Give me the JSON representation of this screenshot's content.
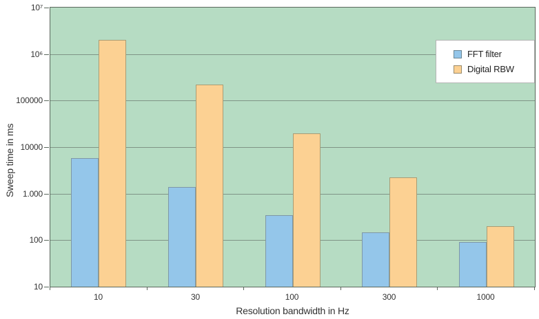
{
  "chart_data": {
    "type": "bar",
    "title": "",
    "xlabel": "Resolution bandwidth in Hz",
    "ylabel": "Sweep time in ms",
    "categories": [
      "10",
      "30",
      "100",
      "300",
      "1000"
    ],
    "series": [
      {
        "name": "FFT filter",
        "color": "#94c6ea",
        "border_color": "#7e97a6",
        "values": [
          5800,
          1400,
          350,
          145,
          90
        ]
      },
      {
        "name": "Digital RBW",
        "color": "#fcd193",
        "border_color": "#a99c74",
        "values": [
          2000000,
          220000,
          20000,
          2200,
          200
        ]
      }
    ],
    "y_axis": {
      "scale": "log",
      "min": 10,
      "max": 10000000,
      "tick_values": [
        10,
        100,
        1000,
        10000,
        100000,
        1000000,
        10000000
      ],
      "tick_labels": [
        "10",
        "100",
        "1.000",
        "10000",
        "100000",
        "10⁶",
        "10⁷"
      ]
    },
    "legend_position": "top-right",
    "grid": true,
    "colors": {
      "plot_background": "#b6dcc3",
      "gridline": "#7f9486",
      "plot_border": "#5a675c",
      "text": "#333333",
      "page_background": "#ffffff"
    }
  }
}
